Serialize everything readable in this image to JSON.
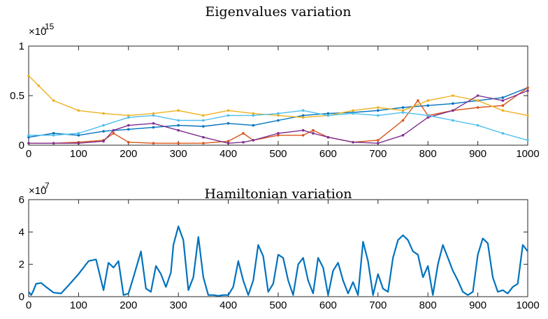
{
  "chart_data": [
    {
      "type": "line",
      "title": "Eigenvalues variation",
      "y_exponent_label": "×10",
      "y_exponent_power": "-15",
      "xlim": [
        0,
        1000
      ],
      "ylim": [
        0,
        1
      ],
      "x_ticks": [
        0,
        100,
        200,
        300,
        400,
        500,
        600,
        700,
        800,
        900,
        1000
      ],
      "x_tick_labels": [
        "0",
        "100",
        "200",
        "300",
        "400",
        "500",
        "600",
        "700",
        "800",
        "900",
        "1000"
      ],
      "y_ticks": [
        0,
        0.5,
        1
      ],
      "y_tick_labels": [
        "0",
        "0.5",
        "1"
      ],
      "grid": false,
      "legend": "none",
      "marker_series": true,
      "series": [
        {
          "color": "#0072BD",
          "x": [
            0,
            50,
            100,
            150,
            200,
            250,
            300,
            350,
            400,
            450,
            500,
            550,
            600,
            650,
            700,
            750,
            800,
            850,
            900,
            950,
            1000
          ],
          "y": [
            0.08,
            0.12,
            0.1,
            0.14,
            0.16,
            0.18,
            0.2,
            0.19,
            0.22,
            0.2,
            0.25,
            0.3,
            0.32,
            0.33,
            0.35,
            0.38,
            0.4,
            0.42,
            0.45,
            0.48,
            0.58
          ]
        },
        {
          "color": "#D95319",
          "x": [
            0,
            50,
            100,
            150,
            170,
            200,
            250,
            300,
            350,
            400,
            430,
            450,
            500,
            550,
            570,
            600,
            650,
            700,
            750,
            780,
            800,
            850,
            900,
            950,
            1000
          ],
          "y": [
            0.02,
            0.02,
            0.03,
            0.05,
            0.12,
            0.03,
            0.02,
            0.02,
            0.02,
            0.04,
            0.12,
            0.05,
            0.1,
            0.1,
            0.15,
            0.08,
            0.03,
            0.05,
            0.25,
            0.45,
            0.3,
            0.35,
            0.38,
            0.4,
            0.58
          ]
        },
        {
          "color": "#EDB120",
          "x": [
            0,
            20,
            50,
            100,
            150,
            200,
            250,
            300,
            350,
            400,
            450,
            500,
            550,
            600,
            650,
            700,
            750,
            800,
            850,
            900,
            950,
            1000
          ],
          "y": [
            0.7,
            0.6,
            0.45,
            0.35,
            0.32,
            0.3,
            0.32,
            0.35,
            0.3,
            0.35,
            0.32,
            0.3,
            0.28,
            0.3,
            0.35,
            0.38,
            0.35,
            0.45,
            0.5,
            0.45,
            0.35,
            0.3
          ]
        },
        {
          "color": "#7E2F8E",
          "x": [
            0,
            50,
            100,
            150,
            170,
            200,
            250,
            300,
            350,
            400,
            430,
            450,
            500,
            550,
            570,
            600,
            650,
            700,
            750,
            800,
            850,
            900,
            950,
            1000
          ],
          "y": [
            0.02,
            0.02,
            0.02,
            0.04,
            0.15,
            0.2,
            0.22,
            0.15,
            0.08,
            0.02,
            0.03,
            0.05,
            0.12,
            0.15,
            0.12,
            0.08,
            0.03,
            0.02,
            0.1,
            0.28,
            0.35,
            0.5,
            0.45,
            0.55
          ]
        },
        {
          "color": "#4DBEEE",
          "x": [
            0,
            50,
            100,
            150,
            200,
            250,
            300,
            350,
            400,
            450,
            500,
            550,
            600,
            650,
            700,
            750,
            800,
            850,
            900,
            950,
            1000
          ],
          "y": [
            0.1,
            0.1,
            0.12,
            0.2,
            0.28,
            0.3,
            0.25,
            0.25,
            0.3,
            0.3,
            0.32,
            0.35,
            0.3,
            0.32,
            0.3,
            0.33,
            0.3,
            0.25,
            0.2,
            0.12,
            0.05
          ]
        }
      ]
    },
    {
      "type": "line",
      "title": "Hamiltonian variation",
      "y_exponent_label": "×10",
      "y_exponent_power": "-7",
      "xlim": [
        0,
        1000
      ],
      "ylim": [
        0,
        6
      ],
      "x_ticks": [
        0,
        100,
        200,
        300,
        400,
        500,
        600,
        700,
        800,
        900,
        1000
      ],
      "x_tick_labels": [
        "0",
        "100",
        "200",
        "300",
        "400",
        "500",
        "600",
        "700",
        "800",
        "900",
        "1000"
      ],
      "y_ticks": [
        0,
        2,
        4,
        6
      ],
      "y_tick_labels": [
        "0",
        "2",
        "4",
        "6"
      ],
      "grid": false,
      "legend": "none",
      "series": [
        {
          "color": "#0072BD",
          "x": [
            0,
            5,
            10,
            15,
            25,
            35,
            50,
            65,
            80,
            100,
            120,
            135,
            150,
            160,
            170,
            180,
            190,
            200,
            210,
            225,
            235,
            245,
            255,
            265,
            275,
            285,
            290,
            300,
            310,
            320,
            330,
            340,
            350,
            360,
            370,
            380,
            390,
            400,
            410,
            420,
            430,
            440,
            450,
            460,
            470,
            480,
            490,
            500,
            510,
            520,
            530,
            540,
            550,
            560,
            570,
            580,
            590,
            600,
            610,
            620,
            630,
            640,
            650,
            660,
            670,
            680,
            690,
            700,
            710,
            720,
            730,
            740,
            750,
            760,
            770,
            780,
            790,
            800,
            810,
            820,
            830,
            840,
            850,
            860,
            870,
            880,
            890,
            900,
            910,
            920,
            930,
            940,
            950,
            960,
            970,
            980,
            990,
            1000
          ],
          "y": [
            0.3,
            0.1,
            0.4,
            0.8,
            0.85,
            0.6,
            0.25,
            0.2,
            0.7,
            1.4,
            2.2,
            2.3,
            0.4,
            2.1,
            1.8,
            2.2,
            0.1,
            0.2,
            1.2,
            2.8,
            0.5,
            0.3,
            1.9,
            1.4,
            0.6,
            1.5,
            3.2,
            4.35,
            3.5,
            0.4,
            1.2,
            3.7,
            1.2,
            0.1,
            0.1,
            0.05,
            0.1,
            0.1,
            0.6,
            2.2,
            1.0,
            0.1,
            1.0,
            3.2,
            2.5,
            0.3,
            0.8,
            2.6,
            2.4,
            1.0,
            0.1,
            2.0,
            2.4,
            1.0,
            0.2,
            2.4,
            1.8,
            0.1,
            1.6,
            2.1,
            1.0,
            0.2,
            0.9,
            0.1,
            3.4,
            2.2,
            0.1,
            1.4,
            0.5,
            0.3,
            2.4,
            3.5,
            3.8,
            3.5,
            2.8,
            2.6,
            1.2,
            1.9,
            0.1,
            2.0,
            3.2,
            2.4,
            1.6,
            1.0,
            0.3,
            0.1,
            0.3,
            2.6,
            3.6,
            3.3,
            1.2,
            0.3,
            0.4,
            0.2,
            0.6,
            0.8,
            3.2,
            2.8
          ]
        }
      ]
    }
  ]
}
